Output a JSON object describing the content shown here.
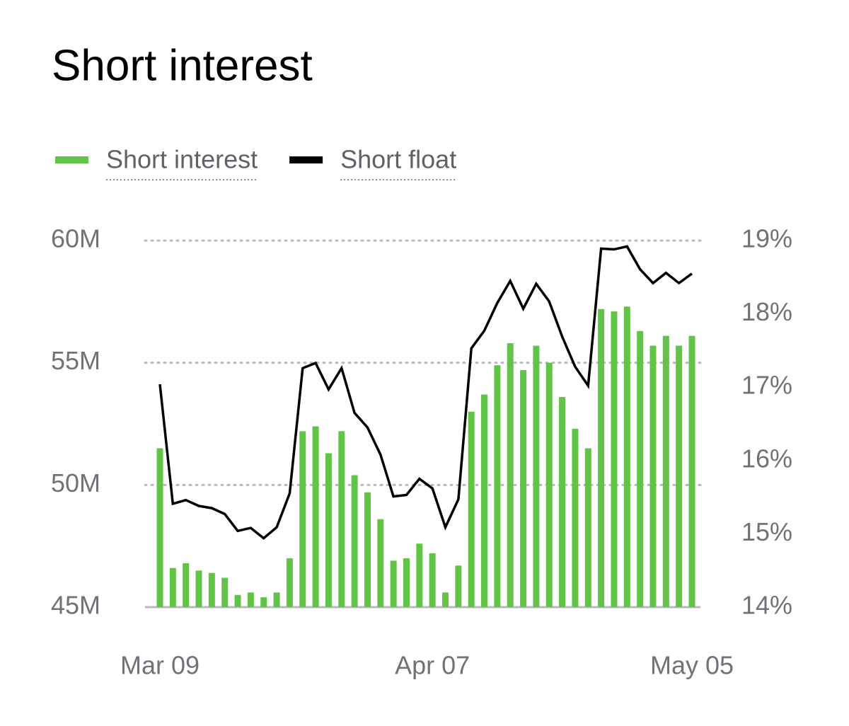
{
  "chart_data": {
    "type": "bar-line",
    "title": "Short interest",
    "categories": [
      "Mar 09",
      null,
      null,
      null,
      null,
      null,
      null,
      null,
      null,
      null,
      null,
      null,
      null,
      null,
      null,
      null,
      null,
      null,
      null,
      null,
      null,
      "Apr 07",
      null,
      null,
      null,
      null,
      null,
      null,
      null,
      null,
      null,
      null,
      null,
      null,
      null,
      null,
      null,
      null,
      null,
      null,
      null,
      "May 05"
    ],
    "series": [
      {
        "name": "Short interest",
        "color": "#62c446",
        "type": "bar",
        "axis": "y",
        "values": [
          51500000,
          46600000,
          46800000,
          46500000,
          46400000,
          46200000,
          45500000,
          45600000,
          45400000,
          45600000,
          47000000,
          52200000,
          52400000,
          51300000,
          52200000,
          50400000,
          49700000,
          48600000,
          46900000,
          47000000,
          47600000,
          47200000,
          45600000,
          46700000,
          53000000,
          53700000,
          54900000,
          55800000,
          54700000,
          55700000,
          55000000,
          53600000,
          52300000,
          51500000,
          57200000,
          57100000,
          57300000,
          56300000,
          55700000,
          56100000,
          55700000,
          56100000
        ]
      },
      {
        "name": "Short float",
        "color": "#000000",
        "type": "line",
        "axis": "y2",
        "values": [
          17.04,
          15.41,
          15.46,
          15.38,
          15.35,
          15.27,
          15.04,
          15.08,
          14.94,
          15.09,
          15.55,
          17.26,
          17.33,
          16.97,
          17.26,
          16.65,
          16.45,
          16.08,
          15.51,
          15.53,
          15.75,
          15.62,
          15.09,
          15.47,
          17.53,
          17.77,
          18.15,
          18.45,
          18.07,
          18.41,
          18.17,
          17.69,
          17.28,
          17.02,
          18.89,
          18.88,
          18.92,
          18.61,
          18.42,
          18.56,
          18.42,
          18.55
        ]
      }
    ],
    "ylim": [
      45000000,
      60000000
    ],
    "yticks": [
      {
        "value": 45000000,
        "label": "45M"
      },
      {
        "value": 50000000,
        "label": "50M"
      },
      {
        "value": 55000000,
        "label": "55M"
      },
      {
        "value": 60000000,
        "label": "60M"
      }
    ],
    "y2lim": [
      14,
      19
    ],
    "y2ticks": [
      {
        "value": 14,
        "label": "14%"
      },
      {
        "value": 15,
        "label": "15%"
      },
      {
        "value": 16,
        "label": "16%"
      },
      {
        "value": 17,
        "label": "17%"
      },
      {
        "value": 18,
        "label": "18%"
      },
      {
        "value": 19,
        "label": "19%"
      }
    ],
    "grid": true
  }
}
